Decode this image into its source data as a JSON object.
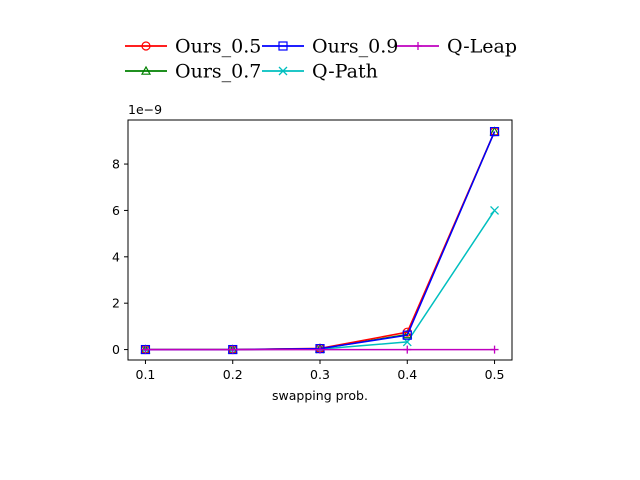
{
  "chart_data": {
    "type": "line",
    "xlabel": "swapping prob.",
    "ylabel": "",
    "y_offset_label": "1e−9",
    "x": [
      0.1,
      0.2,
      0.3,
      0.4,
      0.5
    ],
    "x_tick_labels": [
      "0.1",
      "0.2",
      "0.3",
      "0.4",
      "0.5"
    ],
    "xlim": [
      0.08,
      0.52
    ],
    "y_ticks": [
      0,
      2,
      4,
      6,
      8
    ],
    "y_tick_labels": [
      "0",
      "2",
      "4",
      "6",
      "8"
    ],
    "ylim": [
      -0.45,
      9.9
    ],
    "legend_position": "top-center",
    "grid": false,
    "series": [
      {
        "name": "Ours_0.5",
        "color": "#ff0000",
        "marker": "circle",
        "values": [
          0.0,
          0.0,
          0.05,
          0.75,
          9.4
        ]
      },
      {
        "name": "Ours_0.9",
        "color": "#0000ff",
        "marker": "square",
        "values": [
          0.0,
          0.0,
          0.04,
          0.62,
          9.4
        ]
      },
      {
        "name": "Q-Leap",
        "color": "#bf00bf",
        "marker": "plus",
        "values": [
          0.0,
          0.0,
          0.0,
          0.0,
          0.0
        ]
      },
      {
        "name": "Ours_0.7",
        "color": "#008000",
        "marker": "triangle",
        "values": [
          0.0,
          0.0,
          0.04,
          0.65,
          9.4
        ]
      },
      {
        "name": "Q-Path",
        "color": "#00bfbf",
        "marker": "x",
        "values": [
          0.0,
          0.0,
          0.02,
          0.33,
          6.0
        ]
      }
    ]
  }
}
